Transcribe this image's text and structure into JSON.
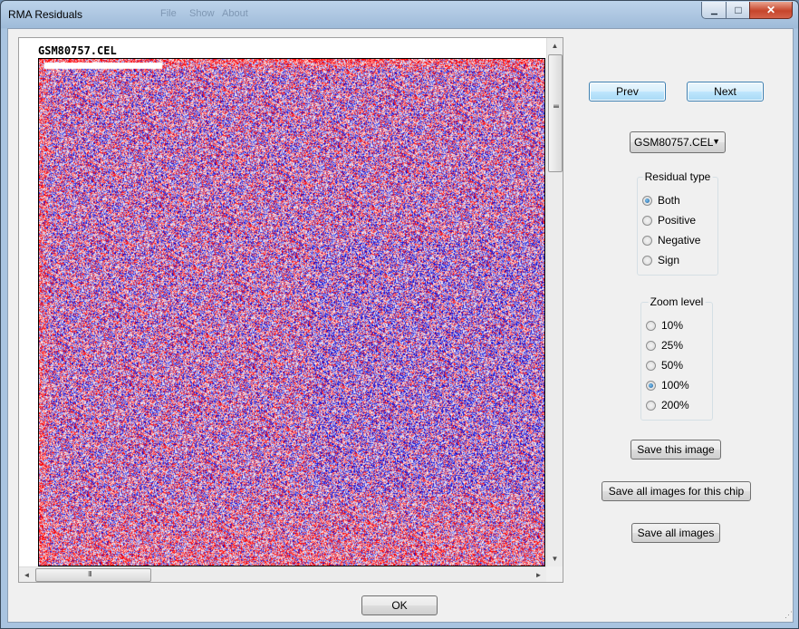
{
  "window": {
    "title": "RMA Residuals",
    "ghost_menu": [
      "File",
      "Show",
      "About"
    ],
    "controls": {
      "minimize": "▁",
      "maximize": "□",
      "close": "✕"
    }
  },
  "viewer": {
    "file_label": "GSM80757.CEL",
    "scroll_arrows": {
      "up": "▲",
      "down": "▼",
      "left": "◄",
      "right": "►"
    },
    "grip": "III",
    "colors": {
      "positive": "#e00000",
      "negative": "#1010c8",
      "neutral": "#ffffff"
    }
  },
  "nav": {
    "prev": "Prev",
    "next": "Next"
  },
  "chip_select": {
    "value": "GSM80757.CEL",
    "arrow": "▼"
  },
  "residual_type": {
    "title": "Residual type",
    "options": [
      "Both",
      "Positive",
      "Negative",
      "Sign"
    ],
    "selected": "Both"
  },
  "zoom": {
    "title": "Zoom level",
    "options": [
      "10%",
      "25%",
      "50%",
      "100%",
      "200%"
    ],
    "selected": "100%"
  },
  "actions": {
    "save_image": "Save this image",
    "save_chip": "Save all images for this chip",
    "save_all": "Save all images"
  },
  "footer": {
    "ok": "OK",
    "resize_grip": "⋰"
  }
}
